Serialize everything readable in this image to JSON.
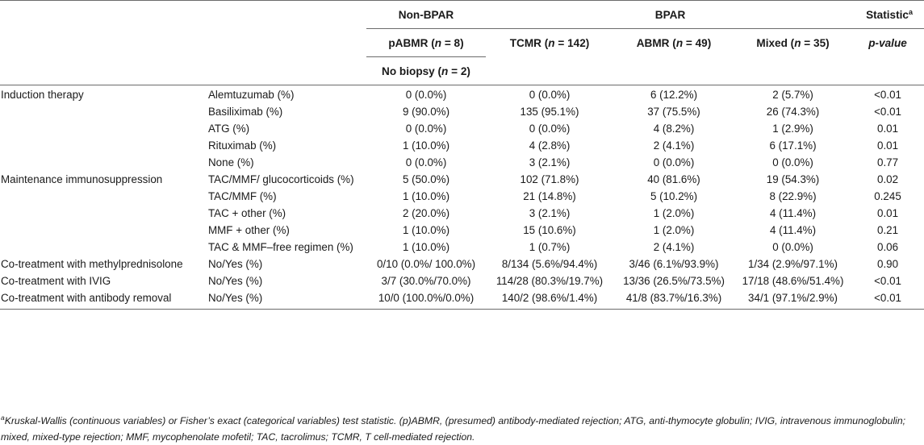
{
  "header": {
    "group_nonbpar": "Non-BPAR",
    "group_bpar": "BPAR",
    "statistic_label": "Statistic",
    "statistic_sup": "a",
    "col_pabmr_pre": "pABMR (",
    "col_pabmr_n": "n",
    "col_pabmr_post": " = 8)",
    "col_nobiopsy_pre": "No biopsy (",
    "col_nobiopsy_n": "n",
    "col_nobiopsy_post": " = 2)",
    "col_tcmr_pre": "TCMR (",
    "col_tcmr_n": "n",
    "col_tcmr_post": " = 142)",
    "col_abmr_pre": "ABMR (",
    "col_abmr_n": "n",
    "col_abmr_post": " = 49)",
    "col_mixed_pre": "Mixed (",
    "col_mixed_n": "n",
    "col_mixed_post": " = 35)",
    "col_pvalue": "p-value"
  },
  "rows": [
    {
      "cat": "Induction therapy",
      "var": "Alemtuzumab (%)",
      "nonbpar": "0 (0.0%)",
      "tcmr": "0 (0.0%)",
      "abmr": "6 (12.2%)",
      "mixed": "2 (5.7%)",
      "p": "<0.01"
    },
    {
      "cat": "",
      "var": "Basiliximab (%)",
      "nonbpar": "9 (90.0%)",
      "tcmr": "135 (95.1%)",
      "abmr": "37 (75.5%)",
      "mixed": "26 (74.3%)",
      "p": "<0.01"
    },
    {
      "cat": "",
      "var": "ATG (%)",
      "nonbpar": "0 (0.0%)",
      "tcmr": "0 (0.0%)",
      "abmr": "4 (8.2%)",
      "mixed": "1 (2.9%)",
      "p": "0.01"
    },
    {
      "cat": "",
      "var": "Rituximab (%)",
      "nonbpar": "1 (10.0%)",
      "tcmr": "4 (2.8%)",
      "abmr": "2 (4.1%)",
      "mixed": "6 (17.1%)",
      "p": "0.01"
    },
    {
      "cat": "",
      "var": "None (%)",
      "nonbpar": "0 (0.0%)",
      "tcmr": "3 (2.1%)",
      "abmr": "0 (0.0%)",
      "mixed": "0 (0.0%)",
      "p": "0.77"
    },
    {
      "cat": "Maintenance immunosuppression",
      "var": "TAC/MMF/ glucocorticoids (%)",
      "nonbpar": "5 (50.0%)",
      "tcmr": "102 (71.8%)",
      "abmr": "40 (81.6%)",
      "mixed": "19 (54.3%)",
      "p": "0.02"
    },
    {
      "cat": "",
      "var": "TAC/MMF (%)",
      "nonbpar": "1 (10.0%)",
      "tcmr": "21 (14.8%)",
      "abmr": "5 (10.2%)",
      "mixed": "8 (22.9%)",
      "p": "0.245"
    },
    {
      "cat": "",
      "var": "TAC + other (%)",
      "nonbpar": "2 (20.0%)",
      "tcmr": "3 (2.1%)",
      "abmr": "1 (2.0%)",
      "mixed": "4 (11.4%)",
      "p": "0.01"
    },
    {
      "cat": "",
      "var": "MMF + other (%)",
      "nonbpar": "1 (10.0%)",
      "tcmr": "15 (10.6%)",
      "abmr": "1 (2.0%)",
      "mixed": "4 (11.4%)",
      "p": "0.21"
    },
    {
      "cat": "",
      "var": "TAC & MMF–free regimen (%)",
      "nonbpar": "1 (10.0%)",
      "tcmr": "1 (0.7%)",
      "abmr": "2 (4.1%)",
      "mixed": "0 (0.0%)",
      "p": "0.06"
    },
    {
      "cat": "Co-treatment with methylprednisolone",
      "var": "No/Yes (%)",
      "nonbpar": "0/10 (0.0%/ 100.0%)",
      "tcmr": "8/134 (5.6%/94.4%)",
      "abmr": "3/46 (6.1%/93.9%)",
      "mixed": "1/34 (2.9%/97.1%)",
      "p": "0.90"
    },
    {
      "cat": "Co-treatment with IVIG",
      "var": "No/Yes (%)",
      "nonbpar": "3/7 (30.0%/70.0%)",
      "tcmr": "114/28 (80.3%/19.7%)",
      "abmr": "13/36 (26.5%/73.5%)",
      "mixed": "17/18 (48.6%/51.4%)",
      "p": "<0.01"
    },
    {
      "cat": "Co-treatment with antibody removal",
      "var": "No/Yes (%)",
      "nonbpar": "10/0 (100.0%/0.0%)",
      "tcmr": "140/2 (98.6%/1.4%)",
      "abmr": "41/8 (83.7%/16.3%)",
      "mixed": "34/1 (97.1%/2.9%)",
      "p": "<0.01"
    }
  ],
  "footnote": {
    "sup": "a",
    "text": "Kruskal-Wallis (continuous variables) or Fisher’s exact (categorical variables) test statistic. (p)ABMR, (presumed) antibody-mediated rejection; ATG, anti-thymocyte globulin; IVIG, intravenous immunoglobulin; mixed, mixed-type rejection; MMF, mycophenolate mofetil; TAC, tacrolimus; TCMR, T cell-mediated rejection."
  }
}
